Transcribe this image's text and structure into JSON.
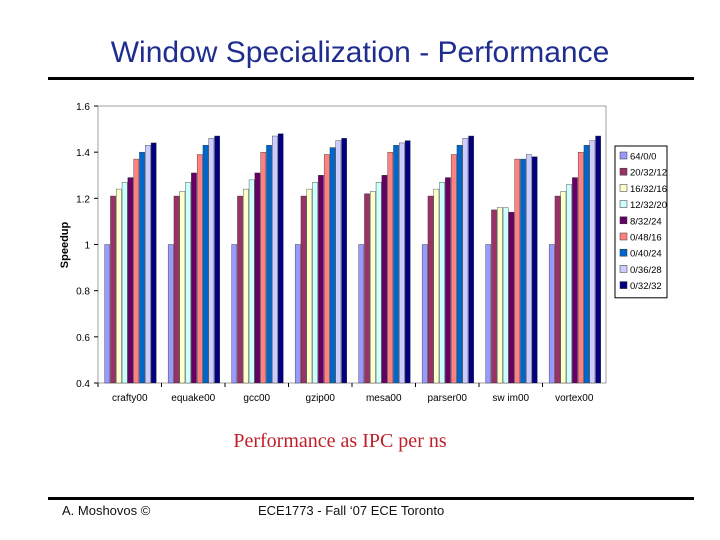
{
  "slide": {
    "title": "Window Specialization - Performance",
    "caption": "Performance as IPC per ns",
    "footer_left": "A. Moshovos ©",
    "footer_center": "ECE1773 - Fall ‘07 ECE Toronto"
  },
  "chart_data": {
    "type": "bar",
    "title": "",
    "xlabel": "",
    "ylabel": "Speedup",
    "ylim": [
      0.4,
      1.6
    ],
    "yticks": [
      "0.4",
      "0.6",
      "0.8",
      "1",
      "1.2",
      "1.4",
      "1.6"
    ],
    "grid": false,
    "legend_position": "right",
    "categories": [
      "crafty00",
      "equake00",
      "gcc00",
      "gzip00",
      "mesa00",
      "parser00",
      "sw im00",
      "vortex00"
    ],
    "series": [
      {
        "name": "64/0/0",
        "color": "#9999ff",
        "values": [
          1.0,
          1.0,
          1.0,
          1.0,
          1.0,
          1.0,
          1.0,
          1.0
        ]
      },
      {
        "name": "20/32/12",
        "color": "#993366",
        "values": [
          1.21,
          1.21,
          1.21,
          1.21,
          1.22,
          1.21,
          1.15,
          1.21
        ]
      },
      {
        "name": "16/32/16",
        "color": "#ffffcc",
        "values": [
          1.24,
          1.23,
          1.24,
          1.24,
          1.23,
          1.24,
          1.16,
          1.23
        ]
      },
      {
        "name": "12/32/20",
        "color": "#ccffff",
        "values": [
          1.27,
          1.27,
          1.28,
          1.27,
          1.27,
          1.27,
          1.16,
          1.26
        ]
      },
      {
        "name": "8/32/24",
        "color": "#660066",
        "values": [
          1.29,
          1.31,
          1.31,
          1.3,
          1.3,
          1.29,
          1.14,
          1.29
        ]
      },
      {
        "name": "0/48/16",
        "color": "#ff8080",
        "values": [
          1.37,
          1.39,
          1.4,
          1.39,
          1.4,
          1.39,
          1.37,
          1.4
        ]
      },
      {
        "name": "0/40/24",
        "color": "#0066cc",
        "values": [
          1.4,
          1.43,
          1.43,
          1.42,
          1.43,
          1.43,
          1.37,
          1.43
        ]
      },
      {
        "name": "0/36/28",
        "color": "#ccccff",
        "values": [
          1.43,
          1.46,
          1.47,
          1.45,
          1.44,
          1.46,
          1.39,
          1.45
        ]
      },
      {
        "name": "0/32/32",
        "color": "#000080",
        "values": [
          1.44,
          1.47,
          1.48,
          1.46,
          1.45,
          1.47,
          1.38,
          1.47
        ]
      }
    ]
  }
}
